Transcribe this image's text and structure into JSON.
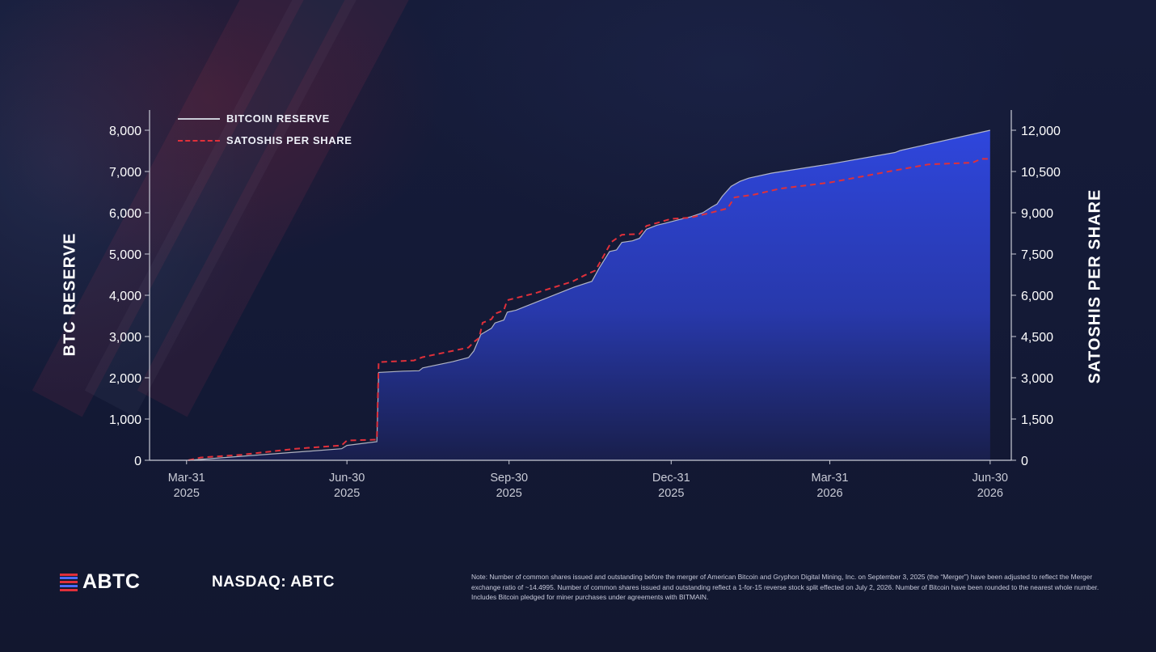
{
  "legend": {
    "series_1": "BITCOIN RESERVE",
    "series_2": "SATOSHIS PER SHARE"
  },
  "axes": {
    "left_title": "BTC RESERVE",
    "right_title": "SATOSHIS PER SHARE"
  },
  "footer": {
    "logo_text": "ABTC",
    "ticker": "NASDAQ: ABTC",
    "note": "Note: Number of common shares issued and outstanding before the merger of American Bitcoin and Gryphon Digital Mining, Inc. on September 3, 2025 (the “Merger”) have been adjusted to reflect the Merger exchange ratio of ~14.4995. Number of common shares issued and outstanding reflect a 1-for-15 reverse stock split effected on July 2, 2026. Number of Bitcoin have been rounded to the nearest whole number. Includes Bitcoin pledged for miner purchases under agreements with BITMAIN."
  },
  "colors": {
    "background": "#141a35",
    "reserve_line": "#c9cbd6",
    "reserve_fill_top": "#2f47e0",
    "reserve_fill_bottom": "#1a2050",
    "satoshis_line": "#e0303a",
    "axis": "#c9cbd6",
    "text": "#ffffff",
    "logo_red": "#e0303a",
    "logo_blue": "#4d6bff"
  },
  "chart_data": {
    "type": "area",
    "x_ticks": [
      {
        "date": "2025-03-31",
        "label": [
          "Mar-31",
          "2025"
        ]
      },
      {
        "date": "2025-06-30",
        "label": [
          "Jun-30",
          "2025"
        ]
      },
      {
        "date": "2025-09-30",
        "label": [
          "Sep-30",
          "2025"
        ]
      },
      {
        "date": "2025-12-31",
        "label": [
          "Dec-31",
          "2025"
        ]
      },
      {
        "date": "2026-03-31",
        "label": [
          "Mar-31",
          "2026"
        ]
      },
      {
        "date": "2026-06-30",
        "label": [
          "Jun-30",
          "2026"
        ]
      }
    ],
    "x_range": [
      "2025-03-10",
      "2026-07-12"
    ],
    "y_left": {
      "title": "BTC RESERVE",
      "min": 0,
      "max": 8000,
      "ticks": [
        "0",
        "1,000",
        "2,000",
        "3,000",
        "4,000",
        "5,000",
        "6,000",
        "7,000",
        "8,000"
      ]
    },
    "y_right": {
      "title": "SATOSHIS PER SHARE",
      "min": 0,
      "max": 12000,
      "ticks": [
        "0",
        "1,500",
        "3,000",
        "4,500",
        "6,000",
        "7,500",
        "9,000",
        "10,500",
        "12,000"
      ]
    },
    "grid": false,
    "legend_position": "top-left",
    "series": [
      {
        "name": "BITCOIN RESERVE",
        "axis": "left",
        "style": "solid-area",
        "points": [
          [
            "2025-04-01",
            0
          ],
          [
            "2025-04-20",
            60
          ],
          [
            "2025-06-27",
            280
          ],
          [
            "2025-06-30",
            360
          ],
          [
            "2025-07-17",
            450
          ],
          [
            "2025-07-18",
            2130
          ],
          [
            "2025-08-01",
            2160
          ],
          [
            "2025-08-10",
            2170
          ],
          [
            "2025-08-12",
            2240
          ],
          [
            "2025-08-29",
            2390
          ],
          [
            "2025-09-07",
            2490
          ],
          [
            "2025-09-10",
            2650
          ],
          [
            "2025-09-14",
            3050
          ],
          [
            "2025-09-20",
            3200
          ],
          [
            "2025-09-22",
            3330
          ],
          [
            "2025-09-27",
            3400
          ],
          [
            "2025-09-29",
            3590
          ],
          [
            "2025-10-04",
            3640
          ],
          [
            "2025-11-03",
            4150
          ],
          [
            "2025-11-06",
            4200
          ],
          [
            "2025-11-16",
            4340
          ],
          [
            "2025-11-20",
            4650
          ],
          [
            "2025-11-26",
            5060
          ],
          [
            "2025-11-30",
            5100
          ],
          [
            "2025-12-03",
            5280
          ],
          [
            "2025-12-09",
            5320
          ],
          [
            "2025-12-13",
            5380
          ],
          [
            "2025-12-17",
            5600
          ],
          [
            "2025-12-23",
            5700
          ],
          [
            "2025-12-27",
            5740
          ],
          [
            "2026-01-05",
            5840
          ],
          [
            "2026-01-11",
            5900
          ],
          [
            "2026-01-18",
            6000
          ],
          [
            "2026-01-23",
            6140
          ],
          [
            "2026-01-26",
            6210
          ],
          [
            "2026-01-29",
            6400
          ],
          [
            "2026-02-03",
            6640
          ],
          [
            "2026-02-08",
            6760
          ],
          [
            "2026-02-13",
            6840
          ],
          [
            "2026-02-26",
            6960
          ],
          [
            "2026-03-31",
            7180
          ],
          [
            "2026-05-07",
            7460
          ],
          [
            "2026-05-10",
            7510
          ],
          [
            "2026-06-30",
            8000
          ]
        ]
      },
      {
        "name": "SATOSHIS PER SHARE",
        "axis": "right",
        "style": "dashed-line",
        "points": [
          [
            "2025-04-01",
            0
          ],
          [
            "2025-04-08",
            100
          ],
          [
            "2025-05-01",
            200
          ],
          [
            "2025-06-01",
            420
          ],
          [
            "2025-06-27",
            540
          ],
          [
            "2025-06-30",
            720
          ],
          [
            "2025-07-17",
            750
          ],
          [
            "2025-07-18",
            3570
          ],
          [
            "2025-08-07",
            3630
          ],
          [
            "2025-08-12",
            3750
          ],
          [
            "2025-09-07",
            4100
          ],
          [
            "2025-09-10",
            4300
          ],
          [
            "2025-09-13",
            4450
          ],
          [
            "2025-09-15",
            5000
          ],
          [
            "2025-09-20",
            5130
          ],
          [
            "2025-09-22",
            5330
          ],
          [
            "2025-09-27",
            5450
          ],
          [
            "2025-09-29",
            5820
          ],
          [
            "2025-10-15",
            6080
          ],
          [
            "2025-11-05",
            6500
          ],
          [
            "2025-11-12",
            6730
          ],
          [
            "2025-11-18",
            6900
          ],
          [
            "2025-11-22",
            7350
          ],
          [
            "2025-11-27",
            7930
          ],
          [
            "2025-12-03",
            8200
          ],
          [
            "2025-12-13",
            8230
          ],
          [
            "2025-12-17",
            8520
          ],
          [
            "2025-12-23",
            8630
          ],
          [
            "2025-12-31",
            8780
          ],
          [
            "2026-01-11",
            8820
          ],
          [
            "2026-01-26",
            9060
          ],
          [
            "2026-02-01",
            9160
          ],
          [
            "2026-02-05",
            9560
          ],
          [
            "2026-02-16",
            9660
          ],
          [
            "2026-03-03",
            9880
          ],
          [
            "2026-03-31",
            10100
          ],
          [
            "2026-05-07",
            10540
          ],
          [
            "2026-05-26",
            10760
          ],
          [
            "2026-06-20",
            10820
          ],
          [
            "2026-06-25",
            10960
          ],
          [
            "2026-06-30",
            10960
          ]
        ]
      }
    ]
  }
}
